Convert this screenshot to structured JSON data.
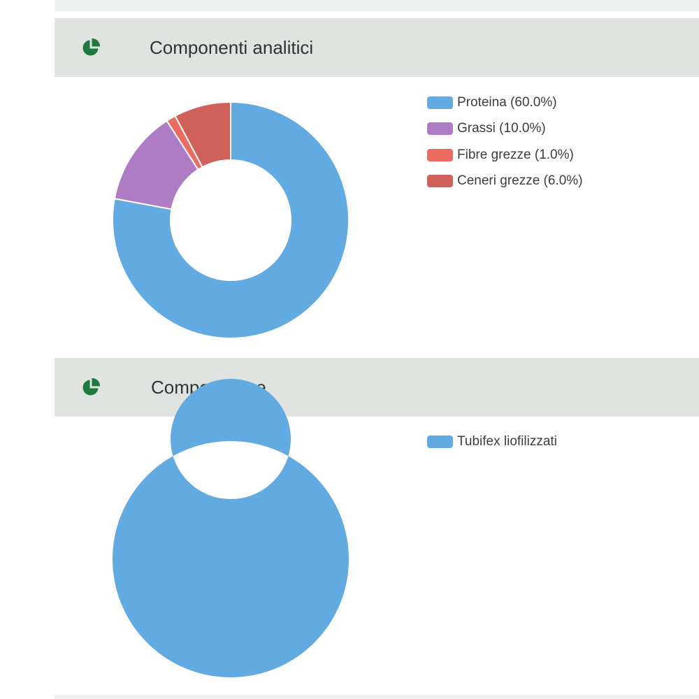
{
  "colors": {
    "header_bg": "#dfe4e0",
    "icon_green": "#1e7a3c"
  },
  "sections": [
    {
      "title": "Componenti analitici",
      "icon": "pie-chart-icon"
    },
    {
      "title": "Composizione",
      "icon": "pie-chart-icon"
    }
  ],
  "chart_data": [
    {
      "type": "pie",
      "donut": true,
      "title": "",
      "legend_position": "right",
      "categories": [
        "Proteina",
        "Grassi",
        "Fibre grezze",
        "Ceneri grezze"
      ],
      "values": [
        60.0,
        10.0,
        1.0,
        6.0
      ],
      "colors": [
        "#62aae2",
        "#ae7bc5",
        "#ec6b61",
        "#d0605a"
      ],
      "legend": [
        "Proteina (60.0%)",
        "Grassi (10.0%)",
        "Fibre grezze (1.0%)",
        "Ceneri grezze (6.0%)"
      ]
    },
    {
      "type": "pie",
      "donut": true,
      "title": "",
      "legend_position": "right",
      "categories": [
        "Tubifex liofilizzati"
      ],
      "values": [
        100
      ],
      "colors": [
        "#62aae2"
      ],
      "legend": [
        "Tubifex liofilizzati"
      ]
    }
  ]
}
